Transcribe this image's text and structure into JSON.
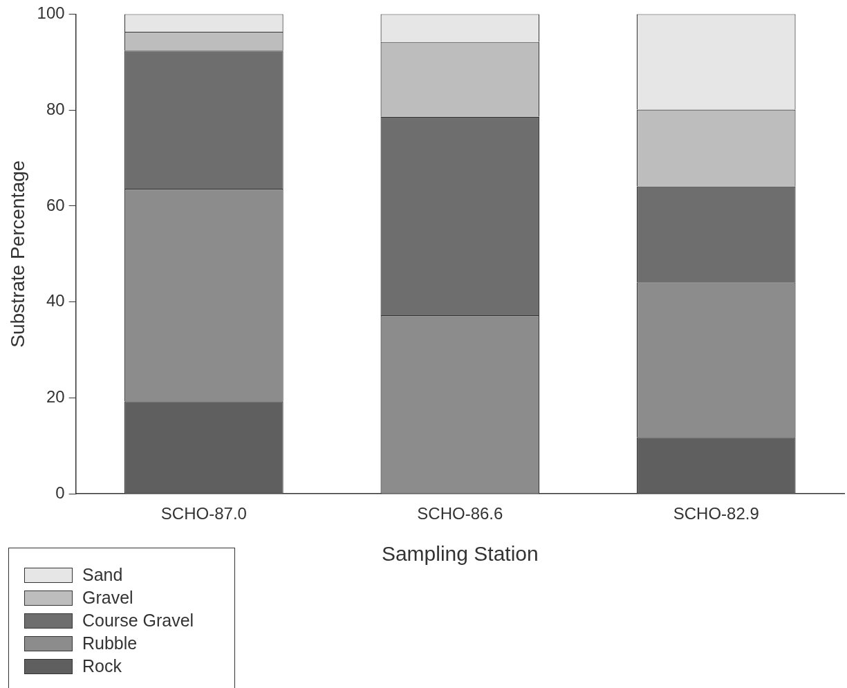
{
  "chart_data": {
    "type": "bar",
    "stacked": true,
    "xlabel": "Sampling Station",
    "ylabel": "Substrate Percentage",
    "categories": [
      "SCHO-87.0",
      "SCHO-86.6",
      "SCHO-82.9"
    ],
    "series": [
      {
        "name": "Rock",
        "color": "#5f5f5f",
        "values": [
          19.3,
          0,
          11.8
        ]
      },
      {
        "name": "Rubble",
        "color": "#8c8c8c",
        "values": [
          44.3,
          37.2,
          32.3
        ]
      },
      {
        "name": "Course Gravel",
        "color": "#6e6e6e",
        "values": [
          28.8,
          41.4,
          20.0
        ]
      },
      {
        "name": "Gravel",
        "color": "#bdbdbd",
        "values": [
          3.9,
          15.6,
          16.0
        ]
      },
      {
        "name": "Sand",
        "color": "#e6e6e6",
        "values": [
          3.7,
          5.8,
          19.9
        ]
      }
    ],
    "ylim": [
      0,
      100
    ],
    "yticks": [
      0,
      20,
      40,
      60,
      80,
      100
    ],
    "grid": false,
    "legend": "bottom left"
  }
}
